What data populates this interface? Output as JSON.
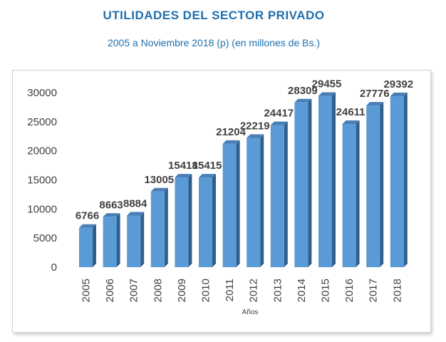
{
  "header": {
    "title": "UTILIDADES DEL SECTOR PRIVADO",
    "subtitle": "2005 a Noviembre 2018 (p) (en millones de Bs.)"
  },
  "colors": {
    "title": "#1f6fad",
    "bar_front": "#5b9bd5",
    "bar_side": "#2f5f8f",
    "bar_top": "#4a7fb5"
  },
  "chart_data": {
    "type": "bar",
    "title": "UTILIDADES DEL SECTOR PRIVADO",
    "subtitle": "2005 a Noviembre 2018 (p) (en millones de Bs.)",
    "xlabel": "Años",
    "ylabel": "",
    "categories": [
      "2005",
      "2006",
      "2007",
      "2008",
      "2009",
      "2010",
      "2011",
      "2012",
      "2013",
      "2014",
      "2015",
      "2016",
      "2017",
      "2018"
    ],
    "values": [
      6766,
      8663,
      8884,
      13005,
      15418,
      15415,
      21204,
      22219,
      24417,
      28309,
      29455,
      24611,
      27776,
      29392
    ],
    "yticks": [
      0,
      5000,
      10000,
      15000,
      20000,
      25000,
      30000
    ],
    "ylim": [
      0,
      30000
    ],
    "grid": false,
    "legend": "none",
    "bar_style": "3d"
  }
}
